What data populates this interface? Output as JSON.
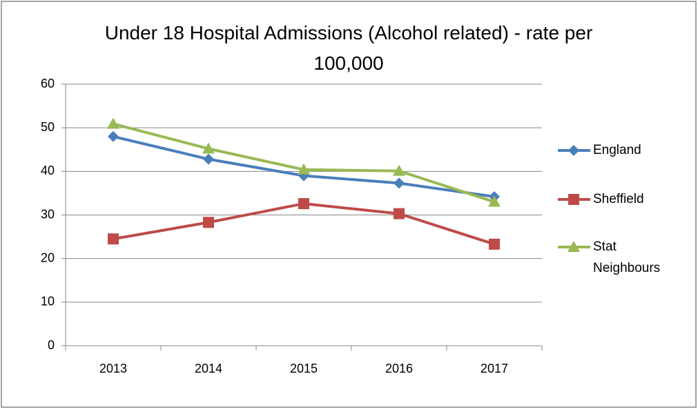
{
  "chart_data": {
    "type": "line",
    "title": "Under 18 Hospital Admissions (Alcohol related) - rate per 100,000",
    "categories": [
      "2013",
      "2014",
      "2015",
      "2016",
      "2017"
    ],
    "series": [
      {
        "name": "England",
        "color": "#4a7ebb",
        "marker": "diamond",
        "values": [
          48.0,
          42.8,
          39.0,
          37.3,
          34.2
        ]
      },
      {
        "name": "Sheffield",
        "color": "#be4b48",
        "marker": "square",
        "values": [
          24.5,
          28.3,
          32.6,
          30.3,
          23.3
        ]
      },
      {
        "name": "Stat Neighbours",
        "color": "#98b954",
        "marker": "triangle",
        "values": [
          50.9,
          45.2,
          40.4,
          40.1,
          33.0
        ]
      }
    ],
    "ylim": [
      0,
      60
    ],
    "yticks": [
      0,
      10,
      20,
      30,
      40,
      50,
      60
    ],
    "grid": true,
    "legend": "right"
  }
}
